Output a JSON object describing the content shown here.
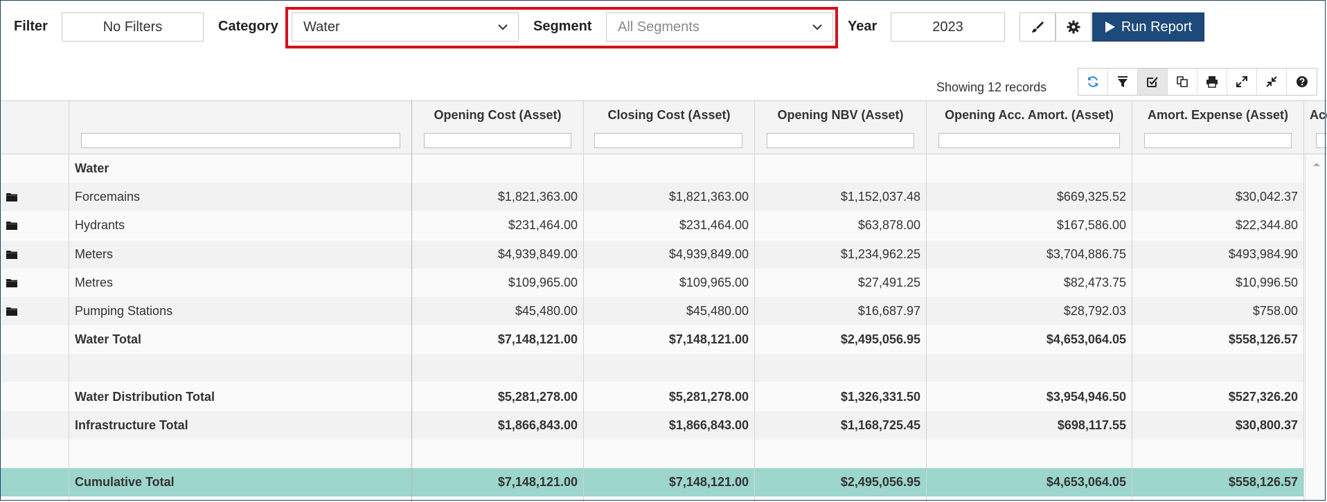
{
  "toolbar": {
    "filter_label": "Filter",
    "filter_value": "No Filters",
    "category_label": "Category",
    "category_value": "Water",
    "segment_label": "Segment",
    "segment_placeholder": "All Segments",
    "year_label": "Year",
    "year_value": "2023",
    "run_report_label": "Run Report"
  },
  "icons": {
    "paint": "paint-brush-icon",
    "settings": "gear-icon",
    "run": "play-icon",
    "grid_tools": [
      "refresh-icon",
      "filter-icon",
      "check-square-icon",
      "copy-icon",
      "print-icon",
      "expand-icon",
      "compress-icon",
      "help-icon"
    ]
  },
  "grid": {
    "records_text": "Showing 12 records",
    "columns": [
      "Opening Cost (Asset)",
      "Closing Cost (Asset)",
      "Opening NBV (Asset)",
      "Opening Acc. Amort. (Asset)",
      "Amort. Expense (Asset)",
      "Acc"
    ],
    "rows": [
      {
        "name": "Water",
        "type": "group",
        "values": [
          "",
          "",
          "",
          "",
          ""
        ]
      },
      {
        "name": "Forcemains",
        "type": "item",
        "values": [
          "$1,821,363.00",
          "$1,821,363.00",
          "$1,152,037.48",
          "$669,325.52",
          "$30,042.37"
        ]
      },
      {
        "name": "Hydrants",
        "type": "item",
        "values": [
          "$231,464.00",
          "$231,464.00",
          "$63,878.00",
          "$167,586.00",
          "$22,344.80"
        ]
      },
      {
        "name": "Meters",
        "type": "item",
        "values": [
          "$4,939,849.00",
          "$4,939,849.00",
          "$1,234,962.25",
          "$3,704,886.75",
          "$493,984.90"
        ]
      },
      {
        "name": "Metres",
        "type": "item",
        "values": [
          "$109,965.00",
          "$109,965.00",
          "$27,491.25",
          "$82,473.75",
          "$10,996.50"
        ]
      },
      {
        "name": "Pumping Stations",
        "type": "item",
        "values": [
          "$45,480.00",
          "$45,480.00",
          "$16,687.97",
          "$28,792.03",
          "$758.00"
        ]
      },
      {
        "name": "Water Total",
        "type": "total",
        "values": [
          "$7,148,121.00",
          "$7,148,121.00",
          "$2,495,056.95",
          "$4,653,064.05",
          "$558,126.57"
        ]
      },
      {
        "name": "",
        "type": "blank",
        "values": [
          "",
          "",
          "",
          "",
          ""
        ]
      },
      {
        "name": "Water Distribution Total",
        "type": "total",
        "values": [
          "$5,281,278.00",
          "$5,281,278.00",
          "$1,326,331.50",
          "$3,954,946.50",
          "$527,326.20"
        ]
      },
      {
        "name": "Infrastructure Total",
        "type": "total",
        "values": [
          "$1,866,843.00",
          "$1,866,843.00",
          "$1,168,725.45",
          "$698,117.55",
          "$30,800.37"
        ]
      },
      {
        "name": "",
        "type": "blank",
        "values": [
          "",
          "",
          "",
          "",
          ""
        ]
      },
      {
        "name": "Cumulative Total",
        "type": "grand",
        "values": [
          "$7,148,121.00",
          "$7,148,121.00",
          "$2,495,056.95",
          "$4,653,064.05",
          "$558,126.57"
        ]
      }
    ]
  }
}
